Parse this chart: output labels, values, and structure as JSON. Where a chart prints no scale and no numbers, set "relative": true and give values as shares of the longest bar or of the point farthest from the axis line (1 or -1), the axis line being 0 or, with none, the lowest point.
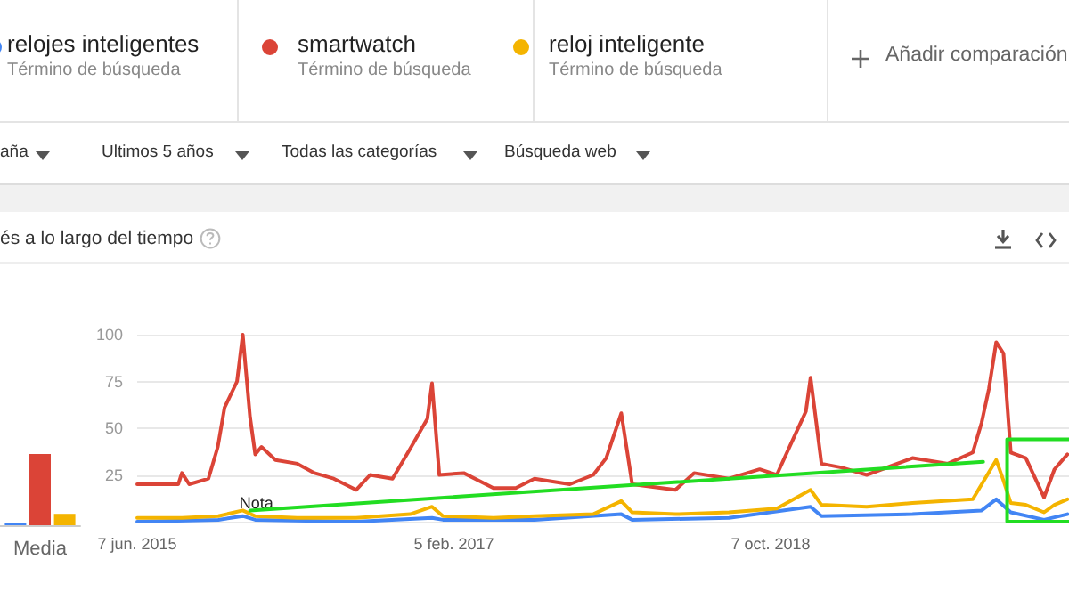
{
  "chart_data": [
    {
      "type": "bar",
      "categories": [
        "Media"
      ],
      "relative": true,
      "series": [
        {
          "color": "#4285f4",
          "values": [
            0.03
          ]
        },
        {
          "color": "#db4437",
          "values": [
            1
          ]
        },
        {
          "color": "#f4b400",
          "values": [
            0.16
          ]
        }
      ]
    },
    {
      "type": "line",
      "title": "és a lo largo del tiempo",
      "legend": "top",
      "annotations": [
        "Término de búsqueda",
        "Término de búsqueda",
        "Término de búsqueda",
        "Añadir comparación",
        "aña",
        "Ultimos 5 años",
        "Todas las categorías",
        "Búsqueda web",
        {
          "text": "Nota",
          "x": "2016-01-10",
          "y": 5
        }
      ],
      "xlim": [
        "2015-06-07",
        "2020-05-03"
      ],
      "xticks": [
        {
          "value": "2015-06-07",
          "label": "7 jun. 2015"
        },
        {
          "value": "2017-02-05",
          "label": "5 feb. 2017"
        },
        {
          "value": "2018-10-07",
          "label": "7 oct. 2018"
        }
      ],
      "ylim": [
        0,
        100
      ],
      "yticks": [
        {
          "value": 0,
          "label": null
        },
        25,
        50,
        75,
        100
      ],
      "grid": "y",
      "series": [
        {
          "name": "relojes inteligentes",
          "color": "#4285f4",
          "x": [
            "2015-06-07",
            "2015-11-10",
            "2015-12-27",
            "2016-01-20",
            "2016-08-01",
            "2016-12-25",
            "2017-01-15",
            "2017-07-10",
            "2017-12-24",
            "2018-01-14",
            "2018-07-19",
            "2018-12-23",
            "2019-01-13",
            "2019-07-07",
            "2019-11-17",
            "2019-12-15",
            "2020-01-12",
            "2020-03-16",
            "2020-04-30"
          ],
          "values": [
            0,
            1,
            3,
            1,
            0,
            2,
            1,
            1,
            4,
            1,
            2,
            8,
            3,
            4,
            6,
            12,
            5,
            1,
            4
          ]
        },
        {
          "name": "smartwatch",
          "color": "#db4437",
          "x": [
            "2015-06-07",
            "2015-08-25",
            "2015-09-01",
            "2015-09-15",
            "2015-10-22",
            "2015-11-09",
            "2015-11-22",
            "2015-12-16",
            "2015-12-27",
            "2016-01-10",
            "2016-01-20",
            "2016-02-01",
            "2016-02-28",
            "2016-04-10",
            "2016-05-13",
            "2016-06-19",
            "2016-08-01",
            "2016-08-28",
            "2016-10-10",
            "2016-11-13",
            "2016-12-16",
            "2016-12-25",
            "2017-01-08",
            "2017-02-24",
            "2017-04-22",
            "2017-06-04",
            "2017-07-10",
            "2017-09-16",
            "2017-10-31",
            "2017-11-25",
            "2017-12-24",
            "2018-01-14",
            "2018-04-07",
            "2018-05-13",
            "2018-07-19",
            "2018-09-16",
            "2018-10-19",
            "2018-11-24",
            "2018-12-14",
            "2018-12-23",
            "2019-01-13",
            "2019-02-20",
            "2019-04-10",
            "2019-07-07",
            "2019-09-13",
            "2019-10-31",
            "2019-11-17",
            "2019-12-01",
            "2019-12-15",
            "2019-12-29",
            "2020-01-12",
            "2020-02-10",
            "2020-03-16",
            "2020-04-05",
            "2020-04-30"
          ],
          "values": [
            20,
            20,
            26,
            20,
            23,
            40,
            61,
            75,
            100,
            56,
            36,
            40,
            33,
            31,
            26,
            23,
            17,
            25,
            23,
            39,
            55,
            74,
            25,
            26,
            18,
            18,
            23,
            20,
            25,
            34,
            58,
            20,
            17,
            26,
            23,
            28,
            25,
            47,
            59,
            77,
            31,
            29,
            25,
            34,
            31,
            37,
            53,
            71,
            96,
            90,
            37,
            34,
            13,
            28,
            36
          ]
        },
        {
          "name": "reloj inteligente",
          "color": "#f4b400",
          "x": [
            "2015-06-07",
            "2015-09-01",
            "2015-11-10",
            "2015-12-27",
            "2016-01-20",
            "2016-04-10",
            "2016-08-01",
            "2016-11-13",
            "2016-12-25",
            "2017-01-15",
            "2017-04-22",
            "2017-07-10",
            "2017-10-31",
            "2017-12-24",
            "2018-01-14",
            "2018-04-07",
            "2018-07-19",
            "2018-10-19",
            "2018-12-23",
            "2019-01-13",
            "2019-04-10",
            "2019-07-07",
            "2019-10-31",
            "2019-12-15",
            "2019-12-29",
            "2020-01-12",
            "2020-02-10",
            "2020-03-16",
            "2020-04-05",
            "2020-04-30"
          ],
          "values": [
            2,
            2,
            3,
            6,
            3,
            2,
            2,
            4,
            8,
            3,
            2,
            3,
            4,
            11,
            5,
            4,
            5,
            7,
            17,
            9,
            8,
            10,
            12,
            33,
            22,
            10,
            9,
            5,
            9,
            12
          ]
        },
        {
          "type": "line",
          "color": "#22dd22",
          "x": [
            "2016-01-10",
            "2019-11-20"
          ],
          "values": [
            6,
            32
          ]
        },
        {
          "type": "line",
          "color": "#22dd22",
          "x": [
            "2020-05-03",
            "2020-01-05",
            "2020-01-05",
            "2020-05-03"
          ],
          "values": [
            44,
            44,
            0,
            0
          ]
        }
      ]
    }
  ]
}
